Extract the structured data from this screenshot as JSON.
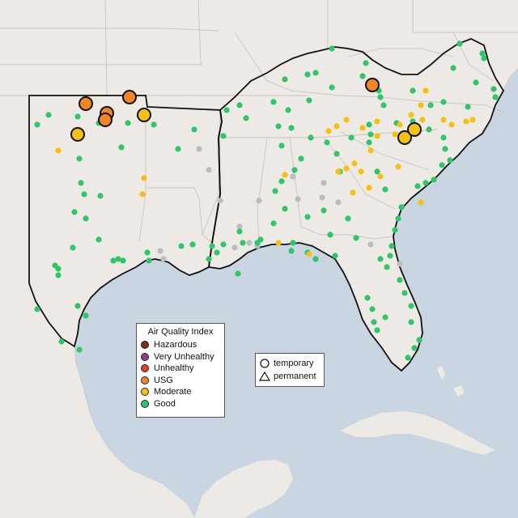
{
  "colors": {
    "ocean": "#c9d6e2",
    "land": "#ede9e5",
    "land_outside": "#e4e0dc",
    "hazardous": "#7e2a1f",
    "very_unhealthy": "#8f3f97",
    "unhealthy": "#e0402d",
    "usg": "#f08526",
    "moderate": "#f4c012",
    "good": "#2fc66a",
    "no_data": "#b9bdc2"
  },
  "legend": {
    "title": "Air Quality Index",
    "categories": [
      {
        "label": "Hazardous",
        "color": "#7e2a1f"
      },
      {
        "label": "Very Unhealthy",
        "color": "#8f3f97"
      },
      {
        "label": "Unhealthy",
        "color": "#e0402d"
      },
      {
        "label": "USG",
        "color": "#f08526"
      },
      {
        "label": "Moderate",
        "color": "#f4c012"
      },
      {
        "label": "Good",
        "color": "#2fc66a"
      }
    ]
  },
  "monitor_types": {
    "temporary": "temporary",
    "permanent": "permanent"
  }
}
